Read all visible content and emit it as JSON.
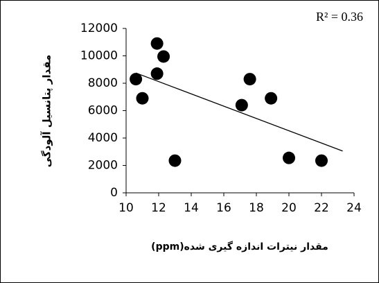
{
  "chart_data": {
    "type": "scatter",
    "y_label": "مقدار پتانسیل آلودگی",
    "x_label": "مقدار نیترات اندازه گیری شده(ppm)",
    "annotation": "R² = 0.36",
    "x": [
      10.6,
      11.0,
      11.9,
      11.9,
      12.3,
      13.0,
      17.1,
      17.6,
      18.9,
      20.0,
      22.0
    ],
    "values": [
      8300,
      6900,
      10900,
      8700,
      9950,
      2350,
      6400,
      8300,
      6900,
      2550,
      2350
    ],
    "color": "#000000",
    "trendline": {
      "x": [
        10.6,
        23.3
      ],
      "values": [
        8750,
        3050
      ]
    },
    "xlim": [
      10,
      24
    ],
    "xticks": [
      10,
      12,
      14,
      16,
      18,
      20,
      22,
      24
    ],
    "ylim": [
      0,
      12000
    ],
    "yticks": [
      0,
      2000,
      4000,
      6000,
      8000,
      10000,
      12000
    ],
    "grid": false
  }
}
